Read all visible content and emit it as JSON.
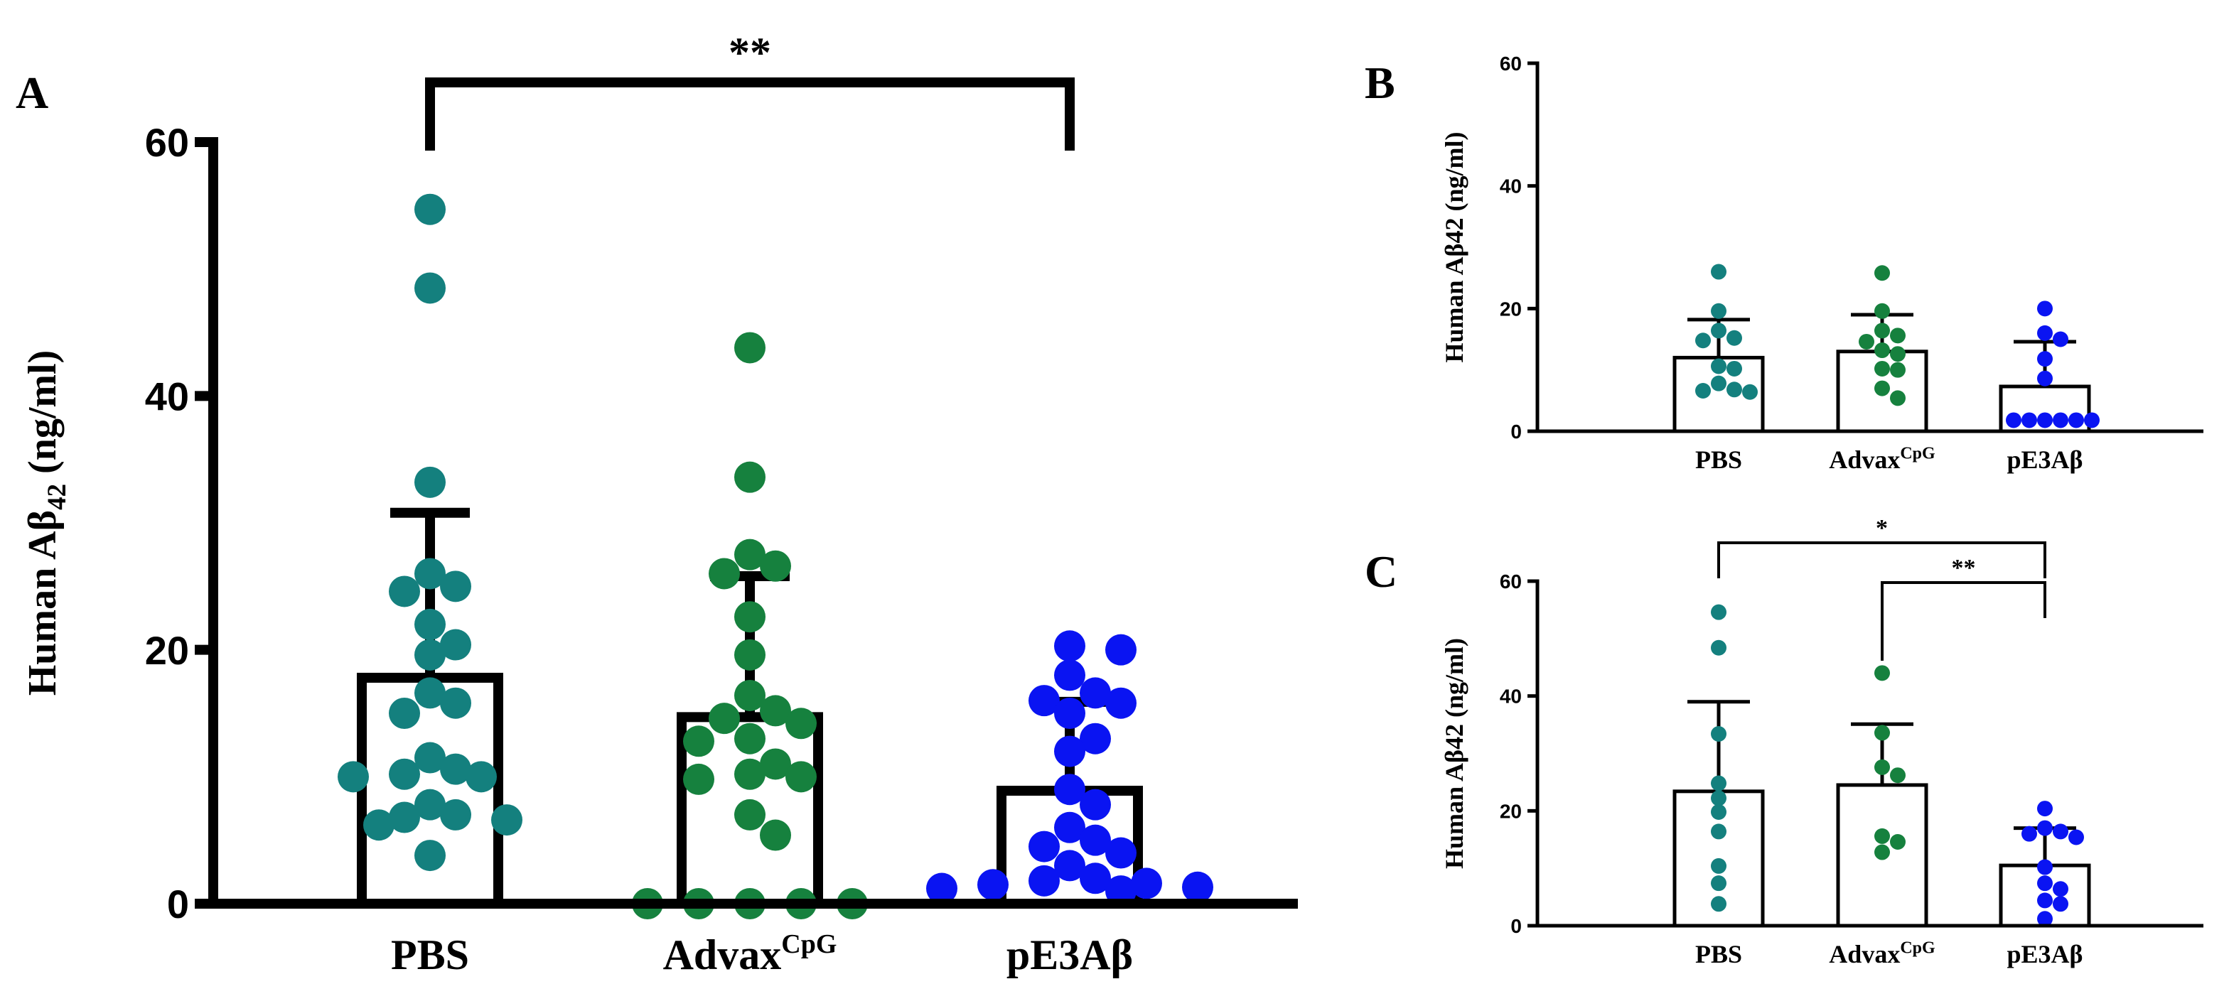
{
  "chart_data": [
    {
      "panel": "A",
      "type": "bar",
      "ylabel": "Human Aβ",
      "ylabel_sub": "42",
      "ylabel_unit": " (ng/ml)",
      "ylim": [
        0,
        60
      ],
      "yticks": [
        "0",
        "20",
        "40",
        "60"
      ],
      "categories": [
        {
          "main": "PBS",
          "sup": ""
        },
        {
          "main": "Advax",
          "sup": "CpG"
        },
        {
          "main": "pE3Aβ",
          "sup": ""
        }
      ],
      "means": [
        17.8,
        14.7,
        8.9
      ],
      "sd_upper": [
        30.8,
        25.8,
        15.9
      ],
      "points": [
        [
          54.7,
          48.5,
          33.2,
          26.0,
          25.0,
          24.6,
          22.0,
          20.4,
          19.6,
          16.6,
          15.8,
          15.0,
          11.5,
          10.6,
          10.2,
          10.0,
          10.0,
          7.8,
          7.0,
          6.8,
          6.6,
          6.2,
          3.8
        ],
        [
          43.8,
          33.6,
          27.5,
          26.6,
          26.0,
          22.6,
          19.6,
          16.4,
          15.2,
          14.6,
          14.2,
          13.0,
          12.8,
          11.0,
          10.2,
          10.0,
          9.8,
          7.0,
          5.4,
          0,
          0,
          0,
          0,
          0
        ],
        [
          20.3,
          20.0,
          18.0,
          16.6,
          16.0,
          15.8,
          15.0,
          13.0,
          12.0,
          9.0,
          7.8,
          6.0,
          5.0,
          4.5,
          4.0,
          3.0,
          2.0,
          1.8,
          1.6,
          1.5,
          1.3,
          1.2,
          1.0
        ]
      ],
      "significance": [
        {
          "from": 0,
          "to": 2,
          "label": "**"
        }
      ],
      "colors": [
        "#14807e",
        "#16813e",
        "#0a14f2"
      ]
    },
    {
      "panel": "B",
      "type": "bar",
      "ylabel": "Human Aβ42 (ng/ml)",
      "ylim": [
        0,
        60
      ],
      "yticks": [
        "0",
        "20",
        "40",
        "60"
      ],
      "categories": [
        {
          "main": "PBS",
          "sup": ""
        },
        {
          "main": "Advax",
          "sup": "CpG"
        },
        {
          "main": "pE3Aβ",
          "sup": ""
        }
      ],
      "means": [
        12.0,
        13.0,
        7.3
      ],
      "sd_upper": [
        18.2,
        19.0,
        14.6
      ],
      "points": [
        [
          26.0,
          19.6,
          16.4,
          15.2,
          14.8,
          10.6,
          10.2,
          7.8,
          6.8,
          6.6,
          6.4
        ],
        [
          25.8,
          19.6,
          16.4,
          15.6,
          14.6,
          13.2,
          12.6,
          10.2,
          10.0,
          7.0,
          5.4
        ],
        [
          20.0,
          16.0,
          15.0,
          11.8,
          8.6,
          1.8,
          1.8,
          1.8,
          1.8,
          1.8,
          1.8
        ]
      ],
      "significance": [],
      "colors": [
        "#14807e",
        "#16813e",
        "#0a14f2"
      ]
    },
    {
      "panel": "C",
      "type": "bar",
      "ylabel": "Human Aβ42 (ng/ml)",
      "ylim": [
        0,
        60
      ],
      "yticks": [
        "0",
        "20",
        "40",
        "60"
      ],
      "categories": [
        {
          "main": "PBS",
          "sup": ""
        },
        {
          "main": "Advax",
          "sup": "CpG"
        },
        {
          "main": "pE3Aβ",
          "sup": ""
        }
      ],
      "means": [
        23.4,
        24.5,
        10.5
      ],
      "sd_upper": [
        39.0,
        35.1,
        17.0
      ],
      "points": [
        [
          54.6,
          48.4,
          33.4,
          24.8,
          22.2,
          19.8,
          16.4,
          10.4,
          7.4,
          3.8
        ],
        [
          44.0,
          33.6,
          27.6,
          26.2,
          15.6,
          14.6,
          12.8
        ],
        [
          20.4,
          17.0,
          16.4,
          16.0,
          15.4,
          10.2,
          7.4,
          6.4,
          4.4,
          3.8,
          1.2
        ]
      ],
      "significance": [
        {
          "from": 0,
          "to": 2,
          "label": "*"
        },
        {
          "from": 1,
          "to": 2,
          "label": "**"
        }
      ],
      "colors": [
        "#14807e",
        "#16813e",
        "#0a14f2"
      ]
    }
  ]
}
